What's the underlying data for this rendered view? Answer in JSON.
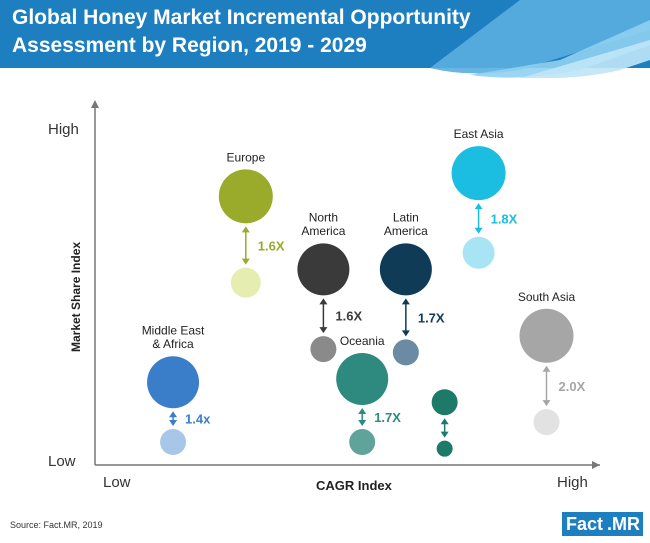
{
  "header": {
    "title_line1": "Global Honey Market Incremental Opportunity",
    "title_line2": "Assessment by Region, 2019 - 2029",
    "color": "#1e7fc0"
  },
  "source": "Source: Fact.MR, 2019",
  "brand": {
    "part1": "Fact",
    "dot": ".",
    "part2": "MR"
  },
  "chart_data": {
    "type": "scatter",
    "xlabel": "CAGR Index",
    "ylabel": "Market Share Index",
    "x_tick_labels": [
      "Low",
      "High"
    ],
    "y_tick_labels": [
      "Low",
      "High"
    ],
    "xlim": [
      0,
      100
    ],
    "ylim": [
      0,
      100
    ],
    "regions": [
      {
        "name": "Europe",
        "multiplier": "1.6X",
        "color": "#9aaa2b",
        "light": "#e6edb0",
        "x": 28,
        "y_top": 77,
        "y_bottom": 51,
        "r_top": 27,
        "r_bottom": 15
      },
      {
        "name": "North\nAmerica",
        "multiplier": "1.6X",
        "color": "#3a3a3a",
        "light": "#8a8a8a",
        "x": 44,
        "y_top": 55,
        "y_bottom": 31,
        "r_top": 26,
        "r_bottom": 13
      },
      {
        "name": "Latin\nAmerica",
        "multiplier": "1.7X",
        "color": "#0f3b57",
        "light": "#6b8aa3",
        "x": 61,
        "y_top": 55,
        "y_bottom": 30,
        "r_top": 26,
        "r_bottom": 13
      },
      {
        "name": "East Asia",
        "multiplier": "1.8X",
        "color": "#1bbde0",
        "light": "#a9e4f4",
        "x": 76,
        "y_top": 84,
        "y_bottom": 60,
        "r_top": 27,
        "r_bottom": 16
      },
      {
        "name": "South Asia",
        "multiplier": "2.0X",
        "color": "#a6a6a6",
        "light": "#e2e2e2",
        "x": 90,
        "y_top": 35,
        "y_bottom": 9,
        "r_top": 27,
        "r_bottom": 13
      },
      {
        "name": "Middle East\n& Africa",
        "multiplier": "1.4x",
        "color": "#3a7ec9",
        "light": "#a8c7e8",
        "x": 13,
        "y_top": 21,
        "y_bottom": 3,
        "r_top": 26,
        "r_bottom": 13
      },
      {
        "name": "Oceania",
        "multiplier": "1.7X",
        "color": "#2e8a7e",
        "light": "#5fa39a",
        "x": 52,
        "y_top": 22,
        "y_bottom": 3,
        "r_top": 26,
        "r_bottom": 13
      },
      {
        "name": "",
        "multiplier": "",
        "color": "#1e7a68",
        "light": "#1e7a68",
        "x": 69,
        "y_top": 15,
        "y_bottom": 1,
        "r_top": 13,
        "r_bottom": 8
      }
    ]
  }
}
